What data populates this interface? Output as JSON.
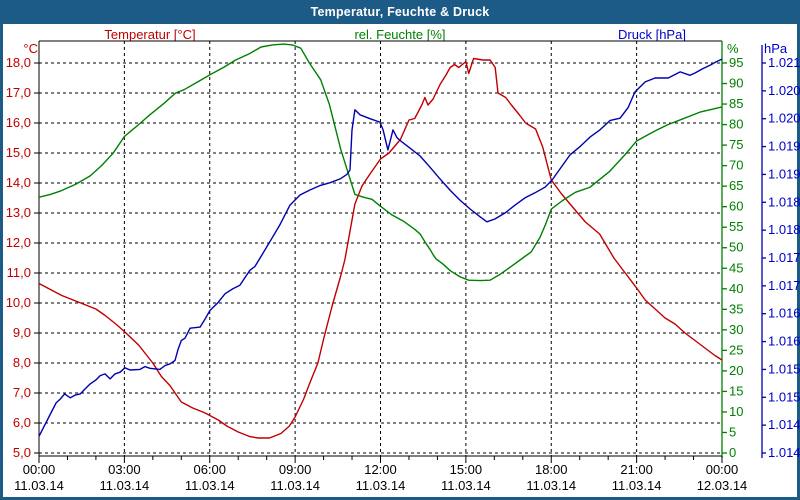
{
  "window": {
    "title": "Temperatur, Feuchte & Druck"
  },
  "legend": {
    "temperature": "Temperatur [°C]",
    "humidity": "rel. Feuchte [%]",
    "pressure": "Druck [hPa]"
  },
  "axes": {
    "temp_unit": "°C",
    "humidity_unit": "%",
    "pressure_unit": "hPa",
    "temp_tick_labels": [
      "18,0",
      "17,0",
      "16,0",
      "15,0",
      "14,0",
      "13,0",
      "12,0",
      "11,0",
      "10,0",
      "9,0",
      "8,0",
      "7,0",
      "6,0",
      "5,0"
    ],
    "humidity_tick_labels": [
      "95",
      "90",
      "85",
      "80",
      "75",
      "70",
      "65",
      "60",
      "55",
      "50",
      "45",
      "40",
      "35",
      "30",
      "25",
      "20",
      "15",
      "10",
      "5",
      "0"
    ],
    "pressure_tick_labels": [
      "1.021",
      "1.020",
      "1.020",
      "1.019",
      "1.019",
      "1.018",
      "1.018",
      "1.017",
      "1.017",
      "1.016",
      "1.016",
      "1.015",
      "1.015",
      "1.014",
      "1.014"
    ],
    "x_tick_labels": [
      {
        "time": "00:00",
        "date": "11.03.14"
      },
      {
        "time": "03:00",
        "date": "11.03.14"
      },
      {
        "time": "06:00",
        "date": "11.03.14"
      },
      {
        "time": "09:00",
        "date": "11.03.14"
      },
      {
        "time": "12:00",
        "date": "11.03.14"
      },
      {
        "time": "15:00",
        "date": "11.03.14"
      },
      {
        "time": "18:00",
        "date": "11.03.14"
      },
      {
        "time": "21:00",
        "date": "11.03.14"
      },
      {
        "time": "00:00",
        "date": "12.03.14"
      }
    ]
  },
  "colors": {
    "frame_blue": "#1d5b87",
    "temperature": "#c00000",
    "humidity": "#008000",
    "pressure": "#0000b2",
    "grid": "#000000"
  },
  "chart_data": {
    "type": "line",
    "title": "Temperatur, Feuchte & Druck",
    "x_unit": "hours since 11.03.14 00:00",
    "x_range": [
      0,
      24
    ],
    "x_major_tick_hours": 3,
    "x_minor_tick_hours": 1,
    "grid": "dashed black, horizontal every 1 °C, vertical every 3 h",
    "legend_position": "top",
    "series": [
      {
        "id": "temperature",
        "name": "Temperatur [°C]",
        "color": "#c00000",
        "axis": "temp",
        "axis_side": "left",
        "axis_range": [
          5,
          18
        ],
        "points": [
          [
            0,
            10.65
          ],
          [
            0.4,
            10.45
          ],
          [
            0.8,
            10.25
          ],
          [
            1.2,
            10.1
          ],
          [
            1.6,
            9.95
          ],
          [
            2,
            9.8
          ],
          [
            2.3,
            9.6
          ],
          [
            2.7,
            9.3
          ],
          [
            3,
            9.05
          ],
          [
            3.5,
            8.6
          ],
          [
            4,
            8.0
          ],
          [
            4.3,
            7.55
          ],
          [
            4.6,
            7.25
          ],
          [
            5,
            6.7
          ],
          [
            5.4,
            6.5
          ],
          [
            5.8,
            6.35
          ],
          [
            6,
            6.25
          ],
          [
            6.3,
            6.1
          ],
          [
            6.6,
            5.9
          ],
          [
            7,
            5.7
          ],
          [
            7.4,
            5.55
          ],
          [
            7.7,
            5.5
          ],
          [
            8.1,
            5.5
          ],
          [
            8.5,
            5.65
          ],
          [
            8.8,
            5.9
          ],
          [
            9,
            6.2
          ],
          [
            9.3,
            6.8
          ],
          [
            9.5,
            7.3
          ],
          [
            9.8,
            8.0
          ],
          [
            10,
            8.8
          ],
          [
            10.3,
            9.9
          ],
          [
            10.6,
            10.9
          ],
          [
            10.75,
            11.45
          ],
          [
            11.1,
            13.3
          ],
          [
            11.35,
            13.9
          ],
          [
            11.63,
            14.3
          ],
          [
            12,
            14.8
          ],
          [
            12.3,
            15.0
          ],
          [
            12.7,
            15.45
          ],
          [
            13,
            16.1
          ],
          [
            13.2,
            16.15
          ],
          [
            13.45,
            16.6
          ],
          [
            13.56,
            16.85
          ],
          [
            13.67,
            16.6
          ],
          [
            13.85,
            16.8
          ],
          [
            14.1,
            17.3
          ],
          [
            14.3,
            17.6
          ],
          [
            14.45,
            17.85
          ],
          [
            14.6,
            17.95
          ],
          [
            14.75,
            17.85
          ],
          [
            15,
            18.05
          ],
          [
            15.1,
            17.65
          ],
          [
            15.27,
            18.15
          ],
          [
            15.6,
            18.1
          ],
          [
            15.85,
            18.1
          ],
          [
            16.03,
            17.85
          ],
          [
            16.13,
            17.0
          ],
          [
            16.4,
            16.85
          ],
          [
            16.6,
            16.6
          ],
          [
            16.9,
            16.25
          ],
          [
            17.1,
            16.0
          ],
          [
            17.45,
            15.8
          ],
          [
            17.7,
            15.2
          ],
          [
            18,
            14.1
          ],
          [
            18.35,
            13.65
          ],
          [
            18.66,
            13.3
          ],
          [
            19.2,
            12.7
          ],
          [
            19.7,
            12.3
          ],
          [
            20.2,
            11.5
          ],
          [
            20.6,
            11.0
          ],
          [
            21,
            10.5
          ],
          [
            21.3,
            10.1
          ],
          [
            21.65,
            9.8
          ],
          [
            22,
            9.5
          ],
          [
            22.35,
            9.3
          ],
          [
            22.7,
            9.0
          ],
          [
            23.05,
            8.75
          ],
          [
            23.4,
            8.5
          ],
          [
            23.75,
            8.25
          ],
          [
            24,
            8.1
          ]
        ]
      },
      {
        "id": "humidity",
        "name": "rel. Feuchte [%]",
        "color": "#008000",
        "axis": "humidity",
        "axis_side": "right",
        "axis_range": [
          0,
          95
        ],
        "points": [
          [
            0,
            62.3
          ],
          [
            0.4,
            63
          ],
          [
            0.75,
            63.8
          ],
          [
            1.3,
            65.5
          ],
          [
            1.8,
            67.5
          ],
          [
            2.2,
            70
          ],
          [
            2.6,
            73
          ],
          [
            3,
            77.1
          ],
          [
            3.5,
            80
          ],
          [
            3.9,
            82.4
          ],
          [
            4.4,
            85.2
          ],
          [
            4.8,
            87.7
          ],
          [
            5.1,
            88.5
          ],
          [
            5.6,
            90.5
          ],
          [
            6,
            92.1
          ],
          [
            6.5,
            94
          ],
          [
            6.9,
            95.7
          ],
          [
            7.4,
            97.3
          ],
          [
            7.8,
            98.9
          ],
          [
            8.2,
            99.4
          ],
          [
            8.6,
            99.6
          ],
          [
            8.9,
            99.4
          ],
          [
            9.2,
            98.6
          ],
          [
            9.5,
            95
          ],
          [
            9.9,
            90.9
          ],
          [
            10.2,
            85
          ],
          [
            10.6,
            74
          ],
          [
            11.1,
            63
          ],
          [
            11.4,
            62.3
          ],
          [
            11.7,
            61.8
          ],
          [
            12,
            60.1
          ],
          [
            12.4,
            58
          ],
          [
            12.8,
            56.5
          ],
          [
            13.2,
            54.5
          ],
          [
            13.4,
            53.3
          ],
          [
            13.6,
            51
          ],
          [
            13.75,
            49.5
          ],
          [
            13.85,
            48.3
          ],
          [
            13.95,
            47.3
          ],
          [
            14.2,
            46
          ],
          [
            14.45,
            44.4
          ],
          [
            14.8,
            42.9
          ],
          [
            15.1,
            42.1
          ],
          [
            15.5,
            42
          ],
          [
            15.85,
            42.1
          ],
          [
            16.2,
            43.5
          ],
          [
            16.5,
            45
          ],
          [
            17,
            47.5
          ],
          [
            17.3,
            49
          ],
          [
            17.6,
            52.5
          ],
          [
            17.8,
            55.7
          ],
          [
            18,
            59.4
          ],
          [
            18.4,
            61.5
          ],
          [
            18.85,
            63.5
          ],
          [
            19.35,
            64.7
          ],
          [
            20.05,
            68.6
          ],
          [
            20.6,
            72.7
          ],
          [
            21,
            76
          ],
          [
            21.6,
            78.3
          ],
          [
            22.1,
            80
          ],
          [
            22.55,
            81.2
          ],
          [
            23.25,
            83.1
          ],
          [
            24,
            84.3
          ]
        ]
      },
      {
        "id": "pressure",
        "name": "Druck [hPa]",
        "color": "#0000b2",
        "axis": "pressure",
        "axis_side": "right",
        "axis_range": [
          1014,
          1021
        ],
        "points": [
          [
            0,
            1014.3
          ],
          [
            0.25,
            1014.55
          ],
          [
            0.4,
            1014.7
          ],
          [
            0.6,
            1014.9
          ],
          [
            0.75,
            1014.97
          ],
          [
            0.9,
            1015.06
          ],
          [
            1.1,
            1014.99
          ],
          [
            1.27,
            1015.04
          ],
          [
            1.45,
            1015.06
          ],
          [
            1.62,
            1015.15
          ],
          [
            1.8,
            1015.24
          ],
          [
            2.0,
            1015.31
          ],
          [
            2.15,
            1015.39
          ],
          [
            2.32,
            1015.42
          ],
          [
            2.5,
            1015.33
          ],
          [
            2.67,
            1015.42
          ],
          [
            2.85,
            1015.45
          ],
          [
            3.02,
            1015.53
          ],
          [
            3.2,
            1015.49
          ],
          [
            3.55,
            1015.5
          ],
          [
            3.72,
            1015.55
          ],
          [
            3.9,
            1015.52
          ],
          [
            4.25,
            1015.5
          ],
          [
            4.43,
            1015.57
          ],
          [
            4.6,
            1015.6
          ],
          [
            4.78,
            1015.66
          ],
          [
            4.88,
            1015.85
          ],
          [
            5.0,
            1016.02
          ],
          [
            5.13,
            1016.06
          ],
          [
            5.31,
            1016.24
          ],
          [
            5.66,
            1016.26
          ],
          [
            5.83,
            1016.4
          ],
          [
            6.01,
            1016.56
          ],
          [
            6.29,
            1016.7
          ],
          [
            6.54,
            1016.86
          ],
          [
            6.82,
            1016.95
          ],
          [
            7.06,
            1017.01
          ],
          [
            7.24,
            1017.15
          ],
          [
            7.41,
            1017.28
          ],
          [
            7.59,
            1017.35
          ],
          [
            7.77,
            1017.5
          ],
          [
            8.12,
            1017.8
          ],
          [
            8.47,
            1018.1
          ],
          [
            8.82,
            1018.45
          ],
          [
            9.17,
            1018.63
          ],
          [
            9.52,
            1018.72
          ],
          [
            9.87,
            1018.8
          ],
          [
            10.22,
            1018.85
          ],
          [
            10.58,
            1018.92
          ],
          [
            10.82,
            1019.0
          ],
          [
            10.93,
            1019.08
          ],
          [
            11.0,
            1019.8
          ],
          [
            11.1,
            1020.16
          ],
          [
            11.28,
            1020.07
          ],
          [
            11.63,
            1020.0
          ],
          [
            11.98,
            1019.94
          ],
          [
            12.09,
            1019.8
          ],
          [
            12.26,
            1019.44
          ],
          [
            12.44,
            1019.8
          ],
          [
            12.58,
            1019.66
          ],
          [
            12.76,
            1019.58
          ],
          [
            13.04,
            1019.47
          ],
          [
            13.39,
            1019.33
          ],
          [
            13.74,
            1019.13
          ],
          [
            14.09,
            1018.92
          ],
          [
            14.44,
            1018.72
          ],
          [
            14.79,
            1018.54
          ],
          [
            15.15,
            1018.38
          ],
          [
            15.5,
            1018.24
          ],
          [
            15.74,
            1018.15
          ],
          [
            16.02,
            1018.2
          ],
          [
            16.38,
            1018.31
          ],
          [
            16.73,
            1018.45
          ],
          [
            17.08,
            1018.58
          ],
          [
            17.43,
            1018.67
          ],
          [
            17.78,
            1018.77
          ],
          [
            18.03,
            1018.9
          ],
          [
            18.66,
            1019.35
          ],
          [
            19.01,
            1019.5
          ],
          [
            19.36,
            1019.67
          ],
          [
            19.71,
            1019.8
          ],
          [
            20.07,
            1019.97
          ],
          [
            20.42,
            1020.01
          ],
          [
            20.7,
            1020.2
          ],
          [
            20.94,
            1020.48
          ],
          [
            21.3,
            1020.66
          ],
          [
            21.65,
            1020.73
          ],
          [
            22.11,
            1020.73
          ],
          [
            22.53,
            1020.84
          ],
          [
            22.88,
            1020.78
          ],
          [
            23.05,
            1020.82
          ],
          [
            23.33,
            1020.9
          ],
          [
            23.58,
            1020.96
          ],
          [
            23.79,
            1021.02
          ],
          [
            24,
            1021.07
          ]
        ]
      }
    ]
  }
}
